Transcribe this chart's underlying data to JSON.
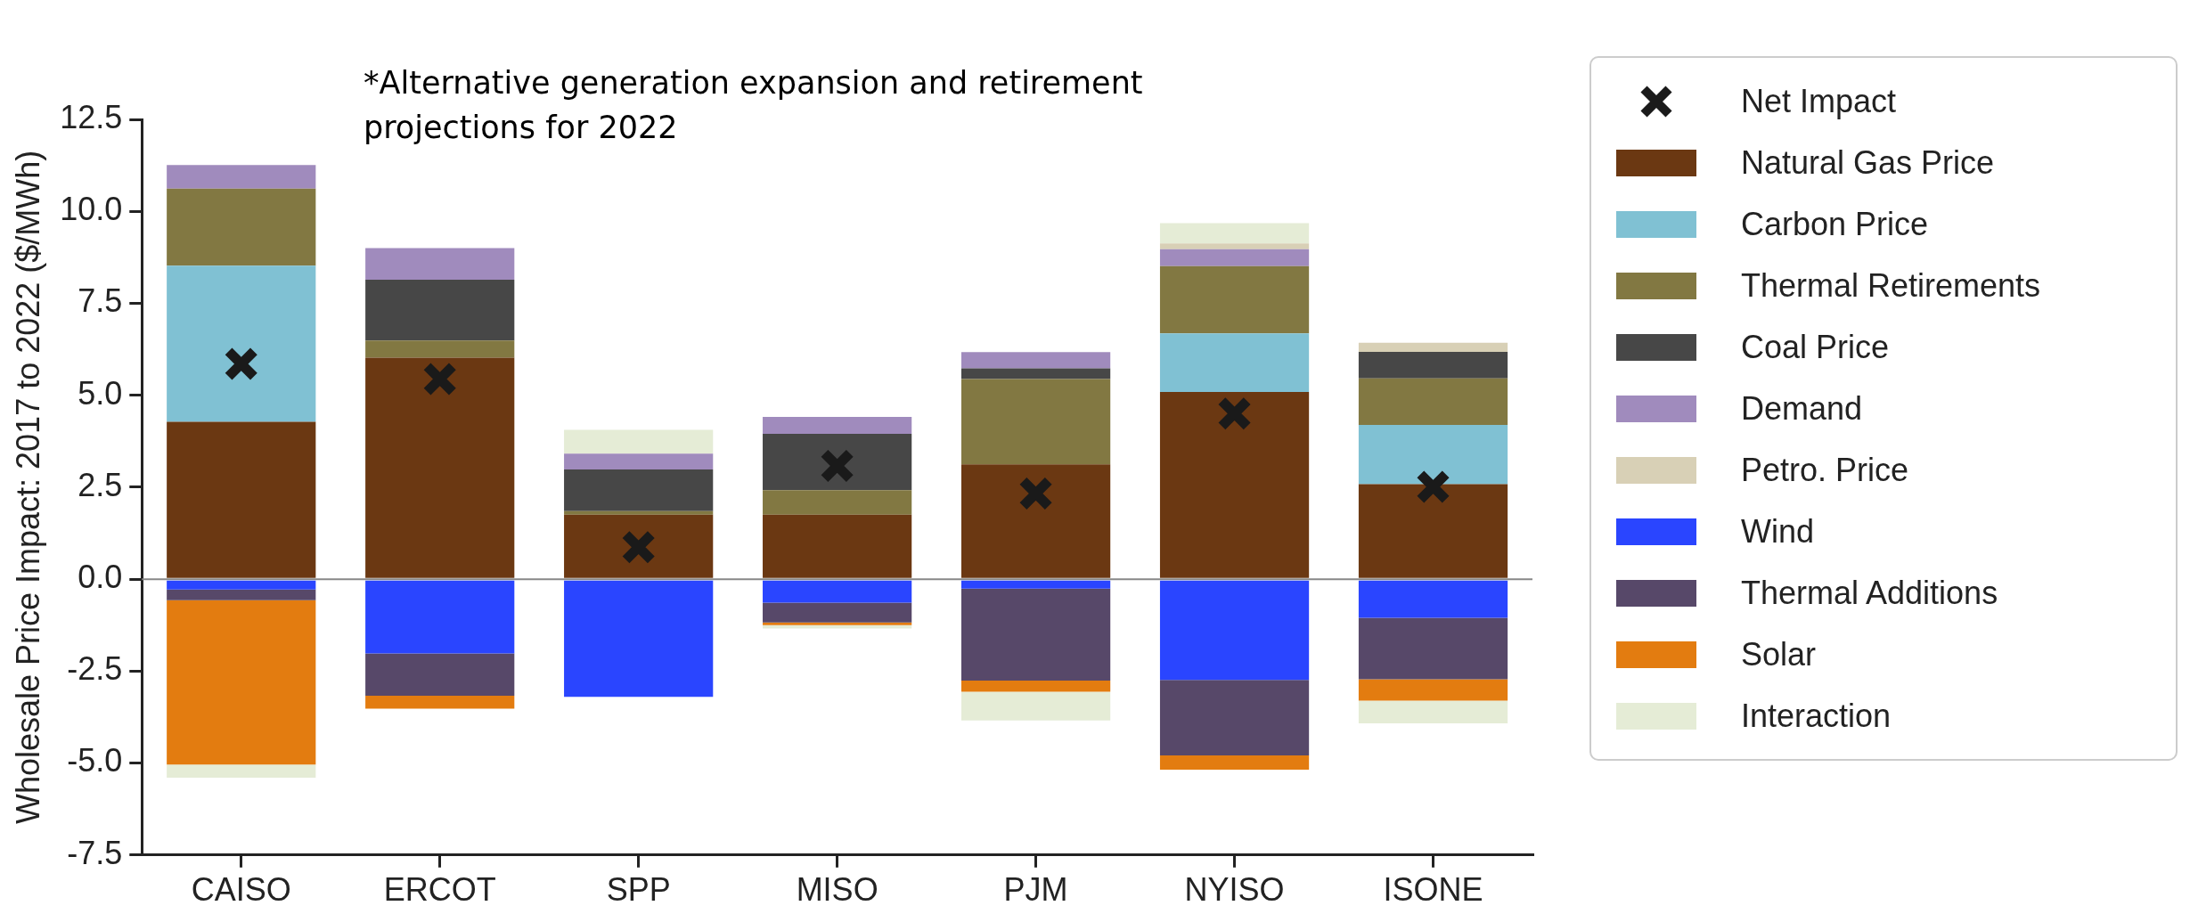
{
  "chart_data": {
    "type": "bar",
    "stacked": true,
    "ylabel": "Wholesale Price Impact: 2017 to 2022 ($/MWh)",
    "annotations": [
      "*Alternative generation expansion and retirement projections for 2022"
    ],
    "categories": [
      "CAISO",
      "ERCOT",
      "SPP",
      "MISO",
      "PJM",
      "NYISO",
      "ISONE"
    ],
    "ylim": [
      -7.5,
      12.5
    ],
    "yticks": [
      {
        "value": -7.5,
        "label": "-7.5"
      },
      {
        "value": -5,
        "label": "-5.0"
      },
      {
        "value": -2.5,
        "label": "-2.5"
      },
      {
        "value": 0,
        "label": "0.0"
      },
      {
        "value": 2.5,
        "label": "2.5"
      },
      {
        "value": 5,
        "label": "5.0"
      },
      {
        "value": 7.5,
        "label": "7.5"
      },
      {
        "value": 10,
        "label": "10.0"
      },
      {
        "value": 12.5,
        "label": "12.5"
      }
    ],
    "grid": false,
    "legend": "right",
    "ref_lines": [
      {
        "axis": "y",
        "value": 0,
        "color": "#888888"
      }
    ],
    "series": [
      {
        "name": "Net Impact",
        "type": "scatter",
        "marker": "cross",
        "color": "#1a1a1a",
        "x": [
          "CAISO",
          "ERCOT",
          "SPP",
          "MISO",
          "PJM",
          "NYISO",
          "ISONE"
        ],
        "values": [
          5.85,
          5.44,
          0.87,
          3.08,
          2.33,
          4.5,
          2.51
        ]
      },
      {
        "name": "Natural Gas Price",
        "color": "#6b3812",
        "values": [
          4.28,
          6.02,
          1.75,
          1.75,
          3.12,
          5.09,
          2.58
        ]
      },
      {
        "name": "Carbon Price",
        "color": "#80c1d3",
        "values": [
          4.24,
          null,
          null,
          null,
          null,
          1.59,
          1.61
        ]
      },
      {
        "name": "Thermal Retirements",
        "color": "#827842",
        "values": [
          2.1,
          0.47,
          0.1,
          0.67,
          2.32,
          1.83,
          1.27
        ]
      },
      {
        "name": "Coal Price",
        "color": "#474747",
        "values": [
          null,
          1.65,
          1.13,
          1.53,
          0.29,
          null,
          0.72
        ]
      },
      {
        "name": "Demand",
        "color": "#a08bbd",
        "values": [
          0.64,
          0.86,
          0.43,
          0.46,
          0.44,
          0.46,
          null
        ]
      },
      {
        "name": "Petro. Price",
        "color": "#d8d0b6",
        "values": [
          null,
          null,
          null,
          null,
          null,
          0.16,
          0.25
        ]
      },
      {
        "name": "Wind",
        "color": "#2a45ff",
        "values": [
          -0.28,
          -2.02,
          -3.2,
          -0.64,
          -0.26,
          -2.74,
          -1.05
        ]
      },
      {
        "name": "Thermal Additions",
        "color": "#574869",
        "values": [
          -0.29,
          -1.15,
          null,
          -0.54,
          -2.5,
          -2.05,
          -1.67
        ]
      },
      {
        "name": "Solar",
        "color": "#e37c10",
        "values": [
          -4.47,
          -0.35,
          null,
          -0.07,
          -0.3,
          -0.39,
          -0.58
        ]
      },
      {
        "name": "Interaction",
        "color": "#e5ecd6",
        "values": [
          -0.36,
          null,
          0.65,
          -0.09,
          -0.78,
          0.55,
          -0.62
        ]
      }
    ]
  }
}
